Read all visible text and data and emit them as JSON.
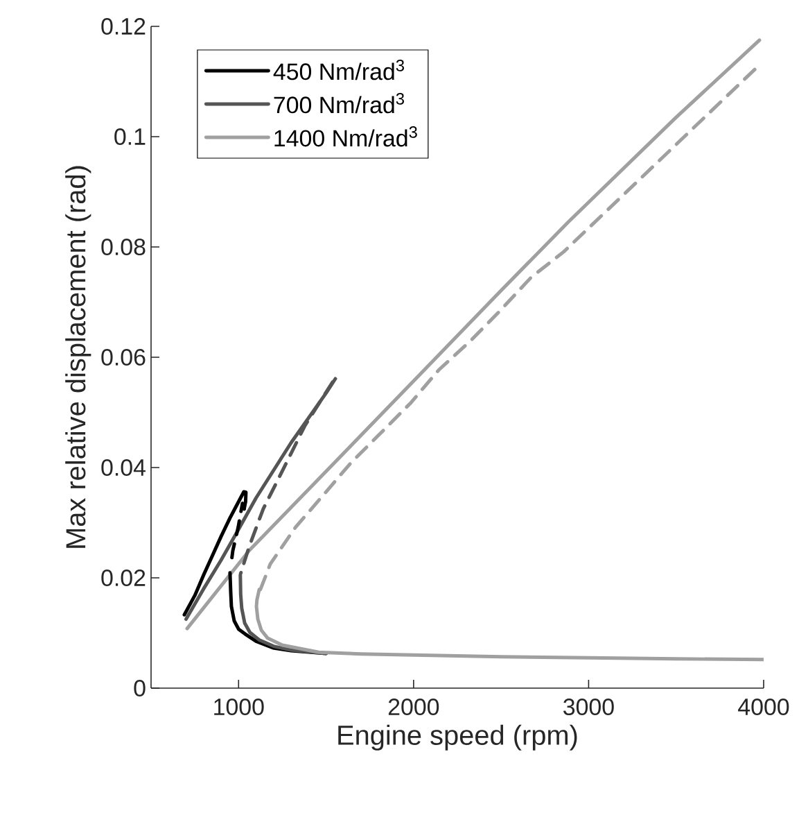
{
  "chart_data": {
    "type": "line",
    "xlabel": "Engine speed (rpm)",
    "ylabel": "Max relative displacement (rad)",
    "xlim": [
      500,
      4000
    ],
    "ylim": [
      0,
      0.12
    ],
    "xticks": [
      1000,
      2000,
      3000,
      4000
    ],
    "yticks": [
      0,
      0.02,
      0.04,
      0.06,
      0.08,
      0.1,
      0.12
    ],
    "grid": false,
    "legend": "top left",
    "marker": "none",
    "series": [
      {
        "name": "450 Nm/rad$^{3}$",
        "color": "#000000",
        "line_style": "solid",
        "x": [
          690,
          750,
          800,
          850,
          900,
          950,
          1000,
          1030,
          1042,
          1040,
          1032
        ],
        "values": [
          0.0133,
          0.0168,
          0.0205,
          0.024,
          0.0275,
          0.0308,
          0.0338,
          0.0356,
          0.0355,
          0.0338,
          0.0325
        ]
      },
      {
        "name": "700 Nm/rad$^{3}$",
        "color": "#555555",
        "line_style": "solid",
        "x": [
          700,
          800,
          900,
          1000,
          1100,
          1200,
          1300,
          1400,
          1500,
          1553
        ],
        "values": [
          0.0125,
          0.018,
          0.0232,
          0.0288,
          0.0345,
          0.0395,
          0.0445,
          0.049,
          0.0535,
          0.0561
        ]
      },
      {
        "name": "1400 Nm/rad$^{3}$",
        "color": "#a0a0a0",
        "line_style": "solid",
        "x": [
          706,
          1062,
          1500,
          2000,
          2500,
          2883,
          3500,
          3976
        ],
        "values": [
          0.0108,
          0.025,
          0.0393,
          0.0557,
          0.0721,
          0.0845,
          0.1035,
          0.1175
        ]
      },
      {
        "color": "#000000",
        "line_style": "dashed",
        "x": [
          1032,
          1022,
          998,
          967,
          955
        ],
        "values": [
          0.0325,
          0.0335,
          0.0292,
          0.0249,
          0.022
        ]
      },
      {
        "color": "#555555",
        "line_style": "dashed",
        "x": [
          1537,
          1379,
          1274,
          1141,
          1062,
          1012
        ],
        "values": [
          0.0555,
          0.0476,
          0.0409,
          0.0325,
          0.0258,
          0.0208
        ]
      },
      {
        "color": "#a0a0a0",
        "line_style": "dashed",
        "x": [
          1125,
          1181,
          1326,
          1484,
          1643,
          1801,
          1986,
          2144,
          2329,
          2487,
          2672,
          2857,
          3976
        ],
        "values": [
          0.0179,
          0.0225,
          0.0292,
          0.035,
          0.0409,
          0.0459,
          0.0518,
          0.0577,
          0.0631,
          0.0682,
          0.0745,
          0.0791,
          0.113
        ]
      },
      {
        "color": "#000000",
        "line_style": "solid",
        "x": [
          951,
          955,
          959,
          975,
          1000,
          1038,
          1100,
          1197,
          1300,
          1500
        ],
        "values": [
          0.0209,
          0.0175,
          0.0148,
          0.0122,
          0.0107,
          0.0098,
          0.0085,
          0.0073,
          0.0068,
          0.0063
        ]
      },
      {
        "color": "#555555",
        "line_style": "solid",
        "x": [
          1010,
          1012,
          1018,
          1035,
          1065,
          1120,
          1200,
          1300,
          1500
        ],
        "values": [
          0.0205,
          0.017,
          0.0145,
          0.0118,
          0.0101,
          0.0087,
          0.0076,
          0.0069,
          0.0063
        ]
      },
      {
        "color": "#a0a0a0",
        "line_style": "solid",
        "x": [
          1118,
          1105,
          1102,
          1110,
          1130,
          1165,
          1250,
          1458,
          1700,
          2000,
          2500,
          3000,
          3500,
          4000
        ],
        "values": [
          0.0179,
          0.016,
          0.0148,
          0.0125,
          0.0105,
          0.0091,
          0.0078,
          0.0065,
          0.0062,
          0.006,
          0.0057,
          0.0055,
          0.0053,
          0.0052
        ]
      }
    ]
  }
}
